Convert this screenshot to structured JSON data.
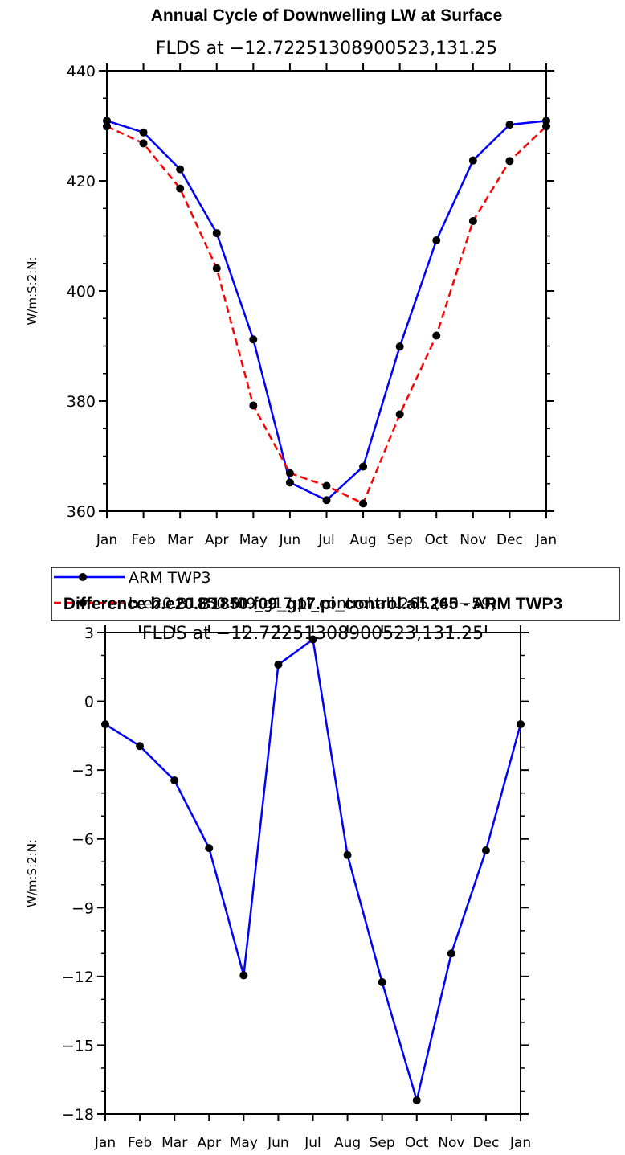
{
  "chart_data": [
    {
      "type": "line",
      "title": "Annual Cycle of Downwelling LW at Surface",
      "subtitle": "FLDS at −12.72251308900523,131.25",
      "ylabel": "W/m:S:2:N:",
      "ylim": [
        360,
        440
      ],
      "yticks": [
        360,
        380,
        400,
        420,
        440
      ],
      "yticks_labels": [
        "360",
        "380",
        "400",
        "420",
        "440"
      ],
      "categories": [
        "Jan",
        "Feb",
        "Mar",
        "Apr",
        "May",
        "Jun",
        "Jul",
        "Aug",
        "Sep",
        "Oct",
        "Nov",
        "Dec",
        "Jan"
      ],
      "series": [
        {
          "name": "ARM TWP3",
          "color": "#0000ff",
          "dash": "solid",
          "values": [
            430.9,
            428.8,
            422.1,
            410.5,
            391.2,
            365.2,
            362.0,
            368.1,
            389.9,
            409.2,
            423.7,
            430.2,
            430.9
          ]
        },
        {
          "name": "b.e20.B1850.f09_g17.pi_control.all.265 (40−59)",
          "color": "#ff0000",
          "dash": "dashed",
          "values": [
            429.9,
            426.8,
            418.6,
            404.1,
            379.2,
            366.9,
            364.6,
            361.4,
            377.6,
            391.9,
            412.7,
            423.6,
            429.9
          ]
        }
      ],
      "grid": false,
      "legend_position": "bottom"
    },
    {
      "type": "line",
      "title": "Difference b.e20.B1850.f09_g17.pi_control.all.265 - ARM TWP3",
      "subtitle": "FLDS at −12.72251308900523,131.25",
      "ylabel": "W/m:S:2:N:",
      "ylim": [
        -18,
        3
      ],
      "yticks": [
        -18,
        -15,
        -12,
        -9,
        -6,
        -3,
        0,
        3
      ],
      "yticks_labels": [
        "−18",
        "−15",
        "−12",
        "−9",
        "−6",
        "−3",
        "0",
        "3"
      ],
      "categories": [
        "Jan",
        "Feb",
        "Mar",
        "Apr",
        "May",
        "Jun",
        "Jul",
        "Aug",
        "Sep",
        "Oct",
        "Nov",
        "Dec",
        "Jan"
      ],
      "series": [
        {
          "color": "#0000ff",
          "dash": "solid",
          "values": [
            -1.0,
            -1.95,
            -3.45,
            -6.4,
            -11.95,
            1.6,
            2.7,
            -6.7,
            -12.25,
            -17.4,
            -11.0,
            -6.5,
            -1.0
          ]
        }
      ],
      "grid": false
    }
  ]
}
